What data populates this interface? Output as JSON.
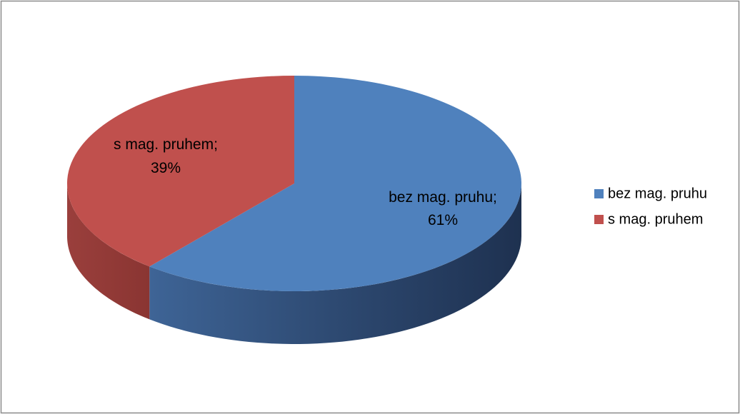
{
  "chart_data": {
    "type": "pie",
    "three_d": true,
    "categories": [
      "bez mag. pruhu",
      "s mag. pruhem"
    ],
    "values": [
      61,
      39
    ],
    "unit": "%",
    "colors": [
      "#4F81BD",
      "#C0504D"
    ],
    "side_colors": [
      "#2E4B73",
      "#8E3A37"
    ],
    "data_labels": [
      "bez mag. pruhu;",
      "s mag. pruhem;"
    ],
    "data_label_values": [
      "61%",
      "39%"
    ],
    "legend": {
      "position": "right",
      "entries": [
        "bez mag. pruhu",
        "s mag. pruhem"
      ]
    },
    "title": ""
  }
}
